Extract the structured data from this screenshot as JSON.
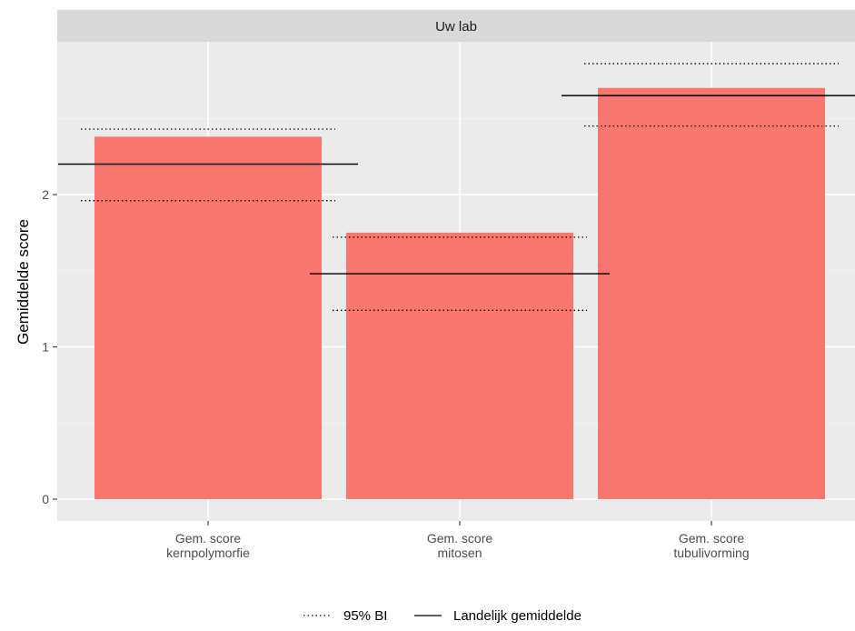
{
  "chart_data": {
    "type": "bar",
    "facet_label": "Uw lab",
    "ylabel": "Gemiddelde score",
    "xlabel": "",
    "ylim": [
      0,
      3.05
    ],
    "yticks": [
      0,
      1,
      2
    ],
    "grid": true,
    "categories": [
      [
        "Gem. score",
        "kernpolymorfie"
      ],
      [
        "Gem. score",
        "mitosen"
      ],
      [
        "Gem. score",
        "tubulivorming"
      ]
    ],
    "values": [
      2.38,
      1.75,
      2.7
    ],
    "national_mean": [
      2.2,
      1.48,
      2.65
    ],
    "ci_lower": [
      1.96,
      1.24,
      2.45
    ],
    "ci_upper": [
      2.43,
      1.72,
      2.86
    ],
    "bar_color": "#F8766D",
    "legend": {
      "position": "bottom",
      "entries": [
        {
          "key": "ci",
          "label": "95% BI",
          "linetype": "dotted"
        },
        {
          "key": "mean",
          "label": "Landelijk gemiddelde",
          "linetype": "solid"
        }
      ]
    }
  }
}
